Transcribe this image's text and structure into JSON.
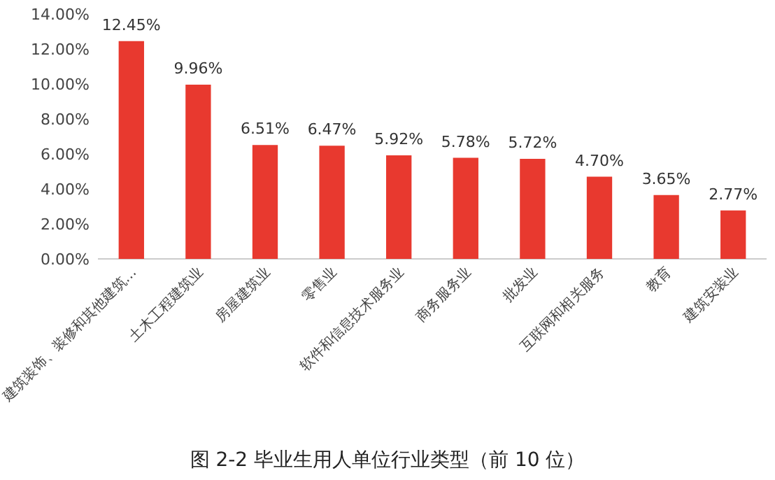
{
  "chart_data": {
    "type": "bar",
    "categories": [
      "建筑装饰、装修和其他建筑…",
      "土木工程建筑业",
      "房屋建筑业",
      "零售业",
      "软件和信息技术服务业",
      "商务服务业",
      "批发业",
      "互联网和相关服务",
      "教育",
      "建筑安装业"
    ],
    "values": [
      12.45,
      9.96,
      6.51,
      6.47,
      5.92,
      5.78,
      5.72,
      4.7,
      3.65,
      2.77
    ],
    "value_labels": [
      "12.45%",
      "9.96%",
      "6.51%",
      "6.47%",
      "5.92%",
      "5.78%",
      "5.72%",
      "4.70%",
      "3.65%",
      "2.77%"
    ],
    "color": "#e8392f",
    "ylim": [
      0,
      14
    ],
    "yticks": [
      {
        "value": 0,
        "label": "0.00%"
      },
      {
        "value": 2,
        "label": "2.00%"
      },
      {
        "value": 4,
        "label": "4.00%"
      },
      {
        "value": 6,
        "label": "6.00%"
      },
      {
        "value": 8,
        "label": "8.00%"
      },
      {
        "value": 10,
        "label": "10.00%"
      },
      {
        "value": 12,
        "label": "12.00%"
      },
      {
        "value": 14,
        "label": "14.00%"
      }
    ],
    "grid": false,
    "annotations": [
      "图 2-2 毕业生用人单位行业类型（前 10 位）"
    ]
  }
}
